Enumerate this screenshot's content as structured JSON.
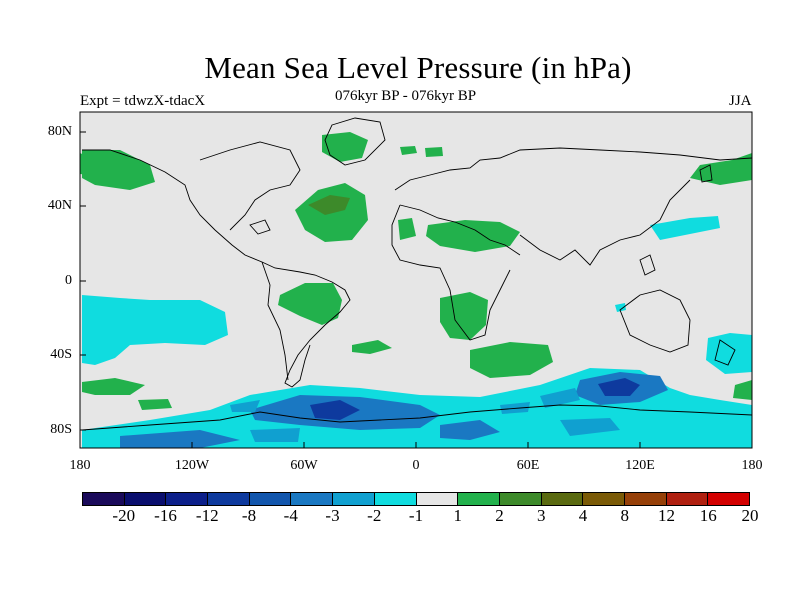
{
  "title": "Mean Sea Level Pressure (in hPa)",
  "subtitle": "076kyr BP - 076kyr BP",
  "experiment": "Expt = tdwzX-tdacX",
  "season": "JJA",
  "latitude_labels": [
    "80N",
    "40N",
    "0",
    "40S",
    "80S"
  ],
  "longitude_labels": [
    "180",
    "120W",
    "60W",
    "0",
    "60E",
    "120E",
    "180"
  ],
  "colorbar": {
    "colors": [
      "#1a0a5a",
      "#0a0e6e",
      "#0c1f8a",
      "#0e3a9e",
      "#1256ad",
      "#1a78c2",
      "#10a0d0",
      "#10dcdf",
      "#e6e6e6",
      "#22b14c",
      "#3d8a2a",
      "#5a6a10",
      "#7a5a06",
      "#964008",
      "#b02010",
      "#d30000"
    ],
    "labels": [
      "-20",
      "-16",
      "-12",
      "-8",
      "-4",
      "-3",
      "-2",
      "-1",
      "1",
      "2",
      "3",
      "4",
      "8",
      "12",
      "16",
      "20"
    ]
  }
}
